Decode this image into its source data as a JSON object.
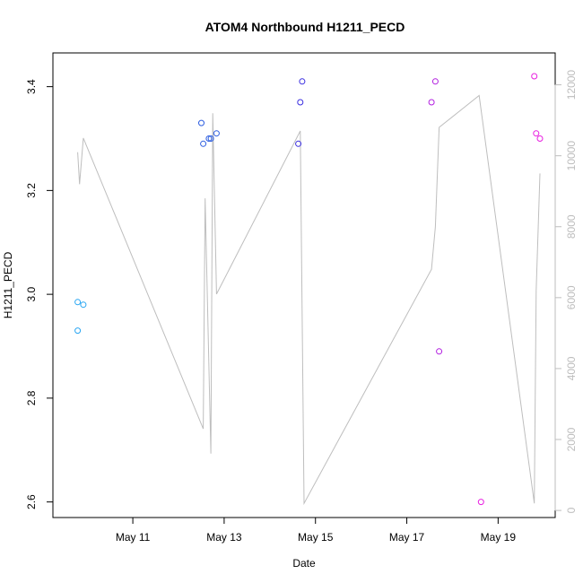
{
  "chart_data": {
    "type": "scatter",
    "title": "ATOM4 Northbound H1211_PECD",
    "xlabel": "Date",
    "ylabel": "H1211_PECD",
    "xlim": [
      "2022-05-09T06:00",
      "2022-05-20T06:00"
    ],
    "ylim": [
      2.57,
      3.465
    ],
    "y2lim": [
      -200,
      12900
    ],
    "x_ticks": [
      {
        "date": "2022-05-11",
        "label": "May 11"
      },
      {
        "date": "2022-05-13",
        "label": "May 13"
      },
      {
        "date": "2022-05-15",
        "label": "May 15"
      },
      {
        "date": "2022-05-17",
        "label": "May 17"
      },
      {
        "date": "2022-05-19",
        "label": "May 19"
      }
    ],
    "y_ticks": [
      "2.6",
      "2.8",
      "3.0",
      "3.2",
      "3.4"
    ],
    "y2_ticks": [
      "0",
      "2000",
      "4000",
      "6000",
      "8000",
      "10000",
      "12000"
    ],
    "colors": {
      "line": "#bebebe",
      "right_axis": "#bdbdbd"
    },
    "series": [
      {
        "color": "#29a6f2",
        "points": [
          {
            "x": "2022-05-09T19:00",
            "y": 2.985
          },
          {
            "x": "2022-05-09T19:00",
            "y": 2.93
          },
          {
            "x": "2022-05-09T22:00",
            "y": 2.98
          }
        ]
      },
      {
        "color": "#2c5de0",
        "points": [
          {
            "x": "2022-05-12T12:00",
            "y": 3.33
          },
          {
            "x": "2022-05-12T13:00",
            "y": 3.29
          },
          {
            "x": "2022-05-12T16:00",
            "y": 3.3
          },
          {
            "x": "2022-05-12T17:00",
            "y": 3.3
          },
          {
            "x": "2022-05-12T20:00",
            "y": 3.31
          }
        ]
      },
      {
        "color": "#3a2ee0",
        "points": [
          {
            "x": "2022-05-14T16:00",
            "y": 3.37
          },
          {
            "x": "2022-05-14T15:00",
            "y": 3.29
          },
          {
            "x": "2022-05-14T17:00",
            "y": 3.41
          }
        ]
      },
      {
        "color": "#b21fe0",
        "points": [
          {
            "x": "2022-05-17T13:00",
            "y": 3.37
          },
          {
            "x": "2022-05-17T15:00",
            "y": 3.41
          },
          {
            "x": "2022-05-17T17:00",
            "y": 2.89
          }
        ]
      },
      {
        "color": "#e81fe0",
        "points": [
          {
            "x": "2022-05-18T15:00",
            "y": 2.6
          },
          {
            "x": "2022-05-19T19:00",
            "y": 3.42
          },
          {
            "x": "2022-05-19T20:00",
            "y": 3.31
          },
          {
            "x": "2022-05-19T22:00",
            "y": 3.3
          }
        ]
      }
    ],
    "line_series": {
      "axis": "right",
      "points": [
        {
          "x": "2022-05-09T19:00",
          "y": 10100
        },
        {
          "x": "2022-05-09T20:00",
          "y": 9200
        },
        {
          "x": "2022-05-09T22:00",
          "y": 10500
        },
        {
          "x": "2022-05-12T13:00",
          "y": 2300
        },
        {
          "x": "2022-05-12T14:00",
          "y": 8800
        },
        {
          "x": "2022-05-12T17:00",
          "y": 1600
        },
        {
          "x": "2022-05-12T18:00",
          "y": 11200
        },
        {
          "x": "2022-05-12T20:00",
          "y": 6100
        },
        {
          "x": "2022-05-14T16:00",
          "y": 10700
        },
        {
          "x": "2022-05-14T18:00",
          "y": 200
        },
        {
          "x": "2022-05-17T13:00",
          "y": 6800
        },
        {
          "x": "2022-05-17T15:00",
          "y": 8000
        },
        {
          "x": "2022-05-17T17:00",
          "y": 10800
        },
        {
          "x": "2022-05-18T14:00",
          "y": 11700
        },
        {
          "x": "2022-05-19T19:00",
          "y": 200
        },
        {
          "x": "2022-05-19T20:00",
          "y": 6200
        },
        {
          "x": "2022-05-19T22:00",
          "y": 9500
        }
      ]
    }
  }
}
